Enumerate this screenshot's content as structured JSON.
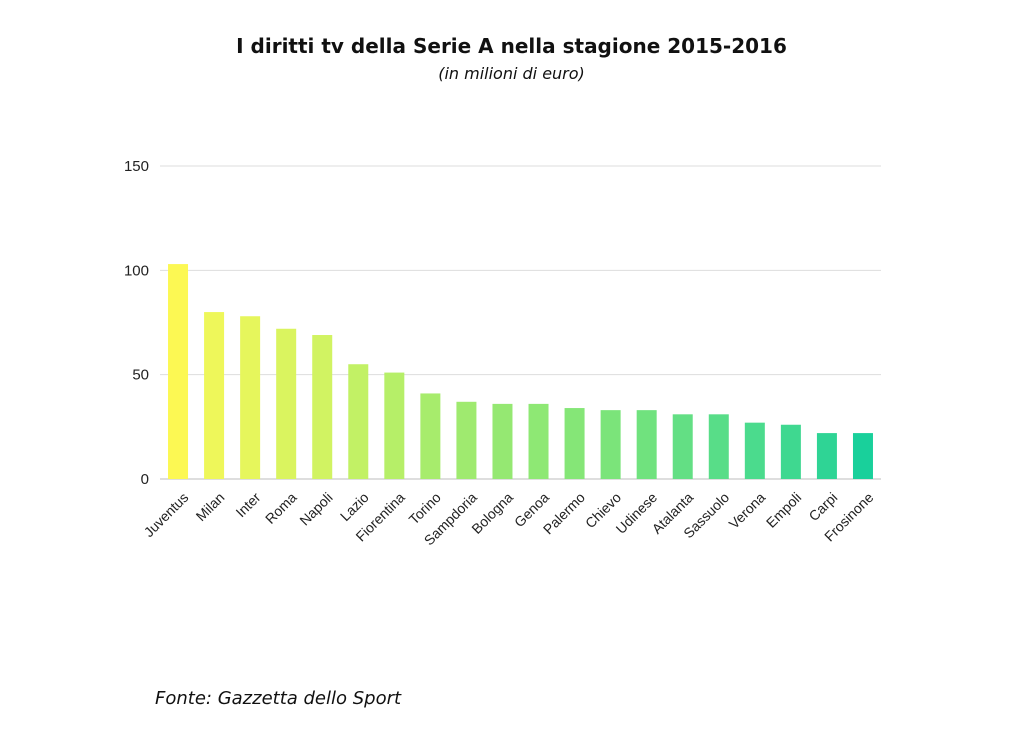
{
  "chart_data": {
    "type": "bar",
    "title": "I diritti tv della Serie A nella stagione 2015-2016",
    "subtitle": "(in milioni di euro)",
    "source": "Fonte: Gazzetta dello Sport",
    "categories": [
      "Juventus",
      "Milan",
      "Inter",
      "Roma",
      "Napoli",
      "Lazio",
      "Fiorentina",
      "Torino",
      "Sampdoria",
      "Bologna",
      "Genoa",
      "Palermo",
      "Chievo",
      "Udinese",
      "Atalanta",
      "Sassuolo",
      "Verona",
      "Empoli",
      "Carpi",
      "Frosinone"
    ],
    "values": [
      103,
      80,
      78,
      72,
      69,
      55,
      51,
      41,
      37,
      36,
      36,
      34,
      33,
      33,
      31,
      31,
      27,
      26,
      22,
      22
    ],
    "colors": [
      "#fcf853",
      "#eef75a",
      "#e6f65c",
      "#daf45f",
      "#d1f362",
      "#c2f165",
      "#b6ef68",
      "#a7ec6c",
      "#9fea6f",
      "#95e872",
      "#8ee874",
      "#85e677",
      "#7be47a",
      "#70e27e",
      "#63df84",
      "#58dd88",
      "#4bdb8d",
      "#3fd890",
      "#2fd495",
      "#19d09b"
    ],
    "yticks": [
      0,
      50,
      100,
      150
    ],
    "ylim": [
      0,
      150
    ],
    "grid": true,
    "xlabel": "",
    "ylabel": ""
  }
}
